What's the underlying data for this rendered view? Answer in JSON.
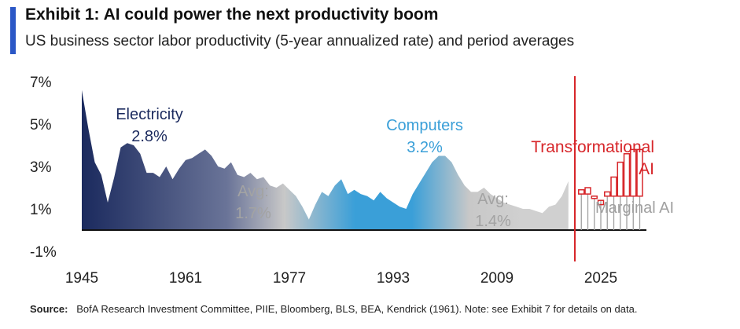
{
  "header": {
    "title": "Exhibit 1: AI could power the next productivity boom",
    "subtitle": "US business sector labor productivity (5-year annualized rate) and period averages"
  },
  "colors": {
    "accent": "#2b57c6",
    "era_electricity": "#1b2a5e",
    "era_computers": "#3a9fd8",
    "avg_gray": "#c8c8c8",
    "forecast_red": "#d7262a",
    "marginal_gray": "#a0a0a0"
  },
  "chart_data": {
    "type": "area",
    "title": "",
    "xlabel": "",
    "ylabel": "",
    "xlim": [
      1945,
      2033
    ],
    "ylim": [
      -1,
      7
    ],
    "y_ticks": [
      "7%",
      "5%",
      "3%",
      "1%",
      "-1%"
    ],
    "y_tick_values": [
      7,
      5,
      3,
      1,
      -1
    ],
    "x_ticks": [
      "1945",
      "1961",
      "1977",
      "1993",
      "2009",
      "2025"
    ],
    "x_tick_values": [
      1945,
      1961,
      1977,
      1993,
      2009,
      2025
    ],
    "series": [
      {
        "x": [
          1945,
          1946,
          1947,
          1948,
          1949,
          1950,
          1951,
          1952,
          1953,
          1954,
          1955,
          1956,
          1957,
          1958,
          1959,
          1960,
          1961,
          1962,
          1963,
          1964,
          1965,
          1966,
          1967,
          1968,
          1969,
          1970,
          1971,
          1972,
          1973,
          1974,
          1975,
          1976,
          1977,
          1978,
          1979,
          1980,
          1981,
          1982,
          1983,
          1984,
          1985,
          1986,
          1987,
          1988,
          1989,
          1990,
          1991,
          1992,
          1993,
          1994,
          1995,
          1996,
          1997,
          1998,
          1999,
          2000,
          2001,
          2002,
          2003,
          2004,
          2005,
          2006,
          2007,
          2008,
          2009,
          2010,
          2011,
          2012,
          2013,
          2014,
          2015,
          2016,
          2017,
          2018,
          2019,
          2020
        ],
        "values": [
          6.6,
          4.8,
          3.2,
          2.6,
          1.3,
          2.5,
          3.9,
          4.1,
          4.0,
          3.6,
          2.7,
          2.7,
          2.5,
          3.0,
          2.4,
          2.9,
          3.3,
          3.4,
          3.6,
          3.8,
          3.5,
          3.0,
          2.9,
          3.2,
          2.6,
          2.5,
          2.7,
          2.4,
          2.5,
          2.1,
          2.0,
          2.2,
          1.9,
          1.6,
          1.1,
          0.5,
          1.2,
          1.8,
          1.6,
          2.1,
          2.4,
          1.7,
          1.9,
          1.7,
          1.6,
          1.4,
          1.8,
          1.5,
          1.3,
          1.1,
          1.0,
          1.7,
          2.2,
          2.7,
          3.2,
          3.5,
          3.5,
          3.2,
          2.6,
          2.1,
          1.8,
          1.8,
          2.0,
          1.7,
          1.5,
          1.3,
          1.2,
          1.1,
          1.0,
          1.0,
          0.9,
          0.8,
          1.1,
          1.2,
          1.6,
          2.3
        ]
      }
    ],
    "eras": [
      {
        "from": 1945,
        "to": 1974,
        "name": "Electricity",
        "value": "2.8%"
      },
      {
        "from": 1974,
        "to": 1995,
        "name": "Avg:",
        "value": "1.7%"
      },
      {
        "from": 1995,
        "to": 2008,
        "name": "Computers",
        "value": "3.2%"
      },
      {
        "from": 2008,
        "to": 2020,
        "name": "Avg:",
        "value": "1.4%"
      }
    ],
    "forecast": {
      "start_line": 2021,
      "x": [
        2022,
        2023,
        2024,
        2025,
        2026,
        2027,
        2028,
        2029,
        2030,
        2031
      ],
      "marginal": [
        1.7,
        1.7,
        1.5,
        1.4,
        1.6,
        1.6,
        1.6,
        1.6,
        1.6,
        1.6
      ],
      "transformational": [
        1.9,
        2.0,
        1.6,
        1.2,
        1.8,
        2.5,
        3.2,
        3.6,
        3.8,
        3.8
      ],
      "labels": {
        "transformational": "Transformational\nAI",
        "marginal": "Marginal AI"
      }
    }
  },
  "footer": {
    "source_label": "Source:",
    "source_text": "BofA Research Investment Committee, PIIE, Bloomberg, BLS, BEA, Kendrick  (1961).  Note: see Exhibit 7 for details on data."
  }
}
